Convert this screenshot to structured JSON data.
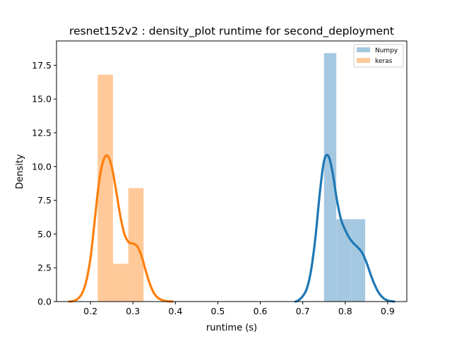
{
  "chart_data": {
    "type": "bar",
    "title": "resnet152v2 : density_plot runtime  for second_deployment",
    "xlabel": "runtime (s)",
    "ylabel": "Density",
    "xlim": [
      0.12,
      0.945
    ],
    "ylim": [
      0,
      19.3
    ],
    "xticks": [
      0.2,
      0.3,
      0.4,
      0.5,
      0.6,
      0.7,
      0.8,
      0.9
    ],
    "yticks": [
      0.0,
      2.5,
      5.0,
      7.5,
      10.0,
      12.5,
      15.0,
      17.5
    ],
    "legend_position": "top-right",
    "grid": false,
    "series": [
      {
        "name": "Numpy",
        "hist_color": "#a5c8e1",
        "kde_color": "#1f77b4",
        "bins": [
          {
            "x0": 0.75,
            "x1": 0.779,
            "density": 18.4
          },
          {
            "x0": 0.779,
            "x1": 0.814,
            "density": 6.1
          },
          {
            "x0": 0.814,
            "x1": 0.847,
            "density": 6.1
          }
        ],
        "kde": {
          "x": [
            0.683,
            0.69,
            0.7,
            0.71,
            0.72,
            0.73,
            0.74,
            0.75,
            0.76,
            0.77,
            0.78,
            0.79,
            0.8,
            0.81,
            0.82,
            0.83,
            0.84,
            0.85,
            0.86,
            0.87,
            0.88,
            0.89,
            0.9,
            0.915
          ],
          "y": [
            0.0,
            0.1,
            0.4,
            1.0,
            2.4,
            4.8,
            8.0,
            10.4,
            10.8,
            9.6,
            7.6,
            6.1,
            5.3,
            4.7,
            4.3,
            4.0,
            3.6,
            2.9,
            2.0,
            1.2,
            0.6,
            0.25,
            0.08,
            0.0
          ]
        }
      },
      {
        "name": "keras",
        "hist_color": "#ffc999",
        "kde_color": "#ff7f0e",
        "bins": [
          {
            "x0": 0.217,
            "x1": 0.253,
            "density": 16.8
          },
          {
            "x0": 0.253,
            "x1": 0.289,
            "density": 2.8
          },
          {
            "x0": 0.289,
            "x1": 0.325,
            "density": 8.4
          }
        ],
        "kde": {
          "x": [
            0.15,
            0.16,
            0.17,
            0.18,
            0.19,
            0.2,
            0.21,
            0.22,
            0.23,
            0.24,
            0.25,
            0.26,
            0.27,
            0.28,
            0.29,
            0.3,
            0.31,
            0.32,
            0.33,
            0.34,
            0.35,
            0.36,
            0.37,
            0.38,
            0.393
          ],
          "y": [
            0.0,
            0.05,
            0.2,
            0.6,
            1.5,
            3.2,
            6.0,
            8.8,
            10.4,
            10.8,
            10.0,
            8.3,
            6.4,
            5.0,
            4.4,
            4.3,
            4.1,
            3.4,
            2.3,
            1.3,
            0.6,
            0.25,
            0.1,
            0.03,
            0.0
          ]
        }
      }
    ]
  }
}
